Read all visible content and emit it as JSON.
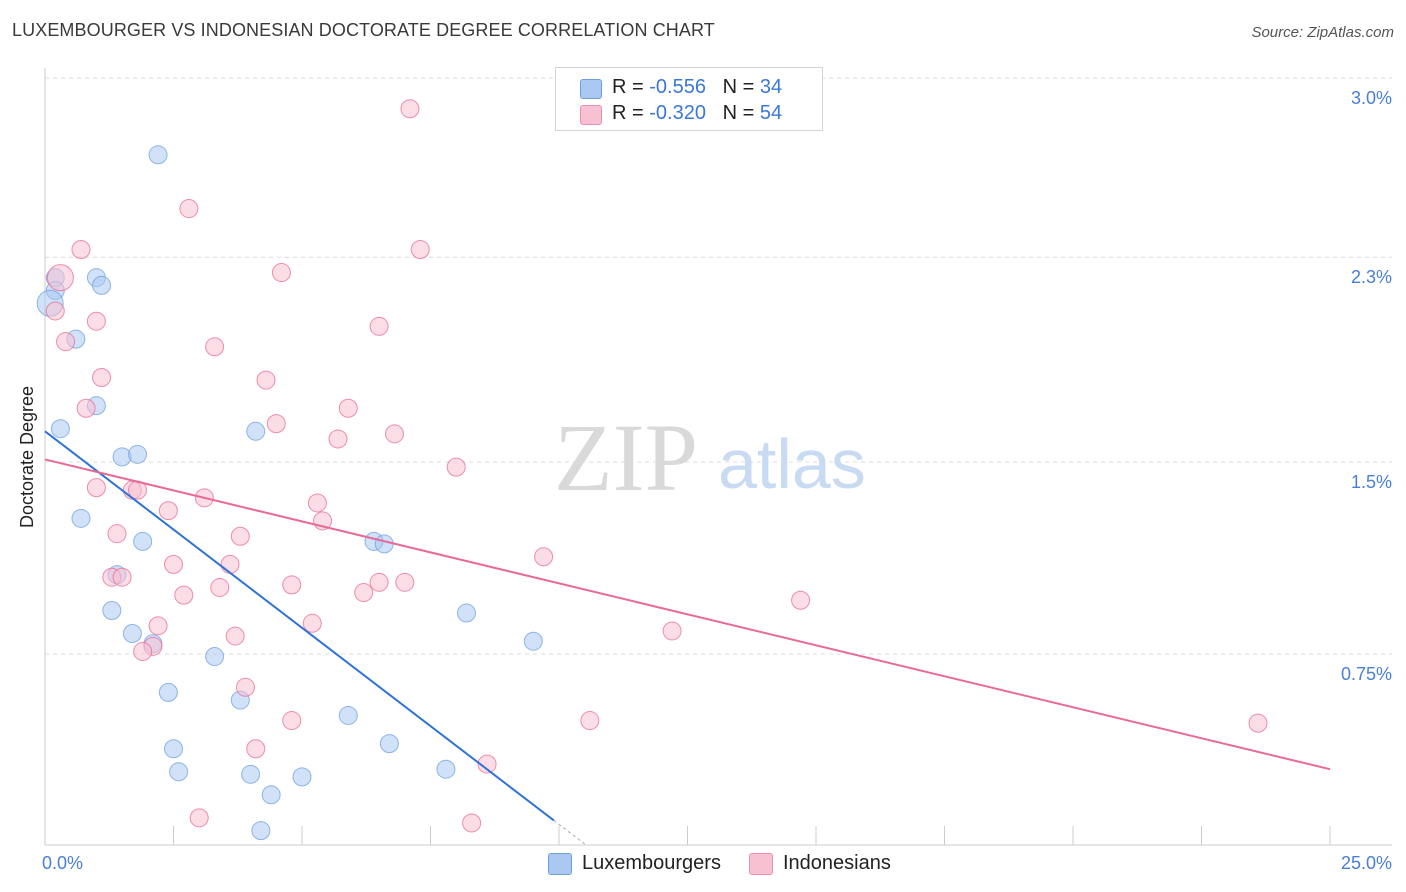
{
  "title": "LUXEMBOURGER VS INDONESIAN DOCTORATE DEGREE CORRELATION CHART",
  "source": "Source: ZipAtlas.com",
  "watermark": {
    "zip": "ZIP",
    "atlas": "atlas"
  },
  "legend": {
    "rows": [
      {
        "r_label": "R = ",
        "r_value": "-0.556",
        "n_label": "N = ",
        "n_value": "34",
        "color": "#a9c8f2",
        "border": "#6f9fe0"
      },
      {
        "r_label": "R = ",
        "r_value": "-0.320",
        "n_label": "N = ",
        "n_value": "54",
        "color": "#f8c1d2",
        "border": "#ec8fae"
      }
    ]
  },
  "bottom_legend": [
    {
      "label": "Luxembourgers",
      "color": "#a9c8f2",
      "border": "#6f9fe0"
    },
    {
      "label": "Indonesians",
      "color": "#f8c1d2",
      "border": "#ec8fae"
    }
  ],
  "chart_data": {
    "type": "scatter",
    "title": "LUXEMBOURGER VS INDONESIAN DOCTORATE DEGREE CORRELATION CHART",
    "ylabel": "Doctorate Degree",
    "xlabel": "",
    "xlim": [
      0,
      25
    ],
    "ylim": [
      0,
      3.1
    ],
    "x_tick_labels": [
      {
        "value": 0,
        "label": "0.0%"
      },
      {
        "value": 25,
        "label": "25.0%"
      }
    ],
    "y_tick_labels": [
      {
        "value": 0.75,
        "label": "0.75%"
      },
      {
        "value": 1.5,
        "label": "1.5%"
      },
      {
        "value": 2.3,
        "label": "2.3%"
      },
      {
        "value": 3.0,
        "label": "3.0%"
      }
    ],
    "x_minor_ticks": [
      2.5,
      5.0,
      7.5,
      10.0,
      12.5,
      15.0,
      17.5,
      20.0,
      22.5,
      25.0
    ],
    "grid": true,
    "series": [
      {
        "name": "Luxembourgers",
        "color": "#6f9fe0",
        "fill": "#a9c8f2",
        "trend": {
          "x0": 0,
          "y0": 1.62,
          "x1": 9.9,
          "y1": 0.1,
          "dash_to_x": 10.5
        },
        "points": [
          [
            2.2,
            2.7
          ],
          [
            0.2,
            2.22
          ],
          [
            1.0,
            2.22
          ],
          [
            1.1,
            2.19
          ],
          [
            0.2,
            2.17
          ],
          [
            0.6,
            1.98
          ],
          [
            0.3,
            1.63
          ],
          [
            1.0,
            1.72
          ],
          [
            4.1,
            1.62
          ],
          [
            1.5,
            1.52
          ],
          [
            1.8,
            1.53
          ],
          [
            0.7,
            1.28
          ],
          [
            1.9,
            1.19
          ],
          [
            6.4,
            1.19
          ],
          [
            6.6,
            1.18
          ],
          [
            1.4,
            1.06
          ],
          [
            1.3,
            0.92
          ],
          [
            8.2,
            0.91
          ],
          [
            1.7,
            0.83
          ],
          [
            2.1,
            0.79
          ],
          [
            3.3,
            0.74
          ],
          [
            9.5,
            0.8
          ],
          [
            2.4,
            0.6
          ],
          [
            3.8,
            0.57
          ],
          [
            5.9,
            0.51
          ],
          [
            2.5,
            0.38
          ],
          [
            6.7,
            0.4
          ],
          [
            2.6,
            0.29
          ],
          [
            4.0,
            0.28
          ],
          [
            5.0,
            0.27
          ],
          [
            7.8,
            0.3
          ],
          [
            4.4,
            0.2
          ],
          [
            4.2,
            0.06
          ],
          [
            0.1,
            2.12
          ]
        ]
      },
      {
        "name": "Indonesians",
        "color": "#e86a95",
        "fill": "#f8c1d2",
        "trend": {
          "x0": 0,
          "y0": 1.51,
          "x1": 25,
          "y1": 0.3
        },
        "points": [
          [
            7.1,
            2.88
          ],
          [
            2.8,
            2.49
          ],
          [
            0.7,
            2.33
          ],
          [
            7.3,
            2.33
          ],
          [
            4.6,
            2.24
          ],
          [
            0.2,
            2.09
          ],
          [
            1.0,
            2.05
          ],
          [
            6.5,
            2.03
          ],
          [
            0.4,
            1.97
          ],
          [
            3.3,
            1.95
          ],
          [
            1.1,
            1.83
          ],
          [
            4.3,
            1.82
          ],
          [
            0.8,
            1.71
          ],
          [
            5.9,
            1.71
          ],
          [
            4.5,
            1.65
          ],
          [
            6.8,
            1.61
          ],
          [
            5.7,
            1.59
          ],
          [
            8.0,
            1.48
          ],
          [
            1.0,
            1.4
          ],
          [
            1.7,
            1.39
          ],
          [
            1.8,
            1.39
          ],
          [
            3.1,
            1.36
          ],
          [
            5.3,
            1.34
          ],
          [
            2.4,
            1.31
          ],
          [
            5.4,
            1.27
          ],
          [
            1.4,
            1.22
          ],
          [
            3.8,
            1.21
          ],
          [
            9.7,
            1.13
          ],
          [
            2.5,
            1.1
          ],
          [
            3.6,
            1.1
          ],
          [
            1.3,
            1.05
          ],
          [
            1.5,
            1.05
          ],
          [
            4.8,
            1.02
          ],
          [
            6.5,
            1.03
          ],
          [
            7.0,
            1.03
          ],
          [
            3.4,
            1.01
          ],
          [
            2.7,
            0.98
          ],
          [
            6.2,
            0.99
          ],
          [
            14.7,
            0.96
          ],
          [
            5.2,
            0.87
          ],
          [
            2.2,
            0.86
          ],
          [
            12.2,
            0.84
          ],
          [
            3.7,
            0.82
          ],
          [
            2.1,
            0.78
          ],
          [
            1.9,
            0.76
          ],
          [
            3.9,
            0.62
          ],
          [
            4.8,
            0.49
          ],
          [
            10.6,
            0.49
          ],
          [
            23.6,
            0.48
          ],
          [
            4.1,
            0.38
          ],
          [
            8.6,
            0.32
          ],
          [
            3.0,
            0.11
          ],
          [
            8.3,
            0.09
          ],
          [
            0.3,
            2.22
          ]
        ]
      }
    ]
  }
}
